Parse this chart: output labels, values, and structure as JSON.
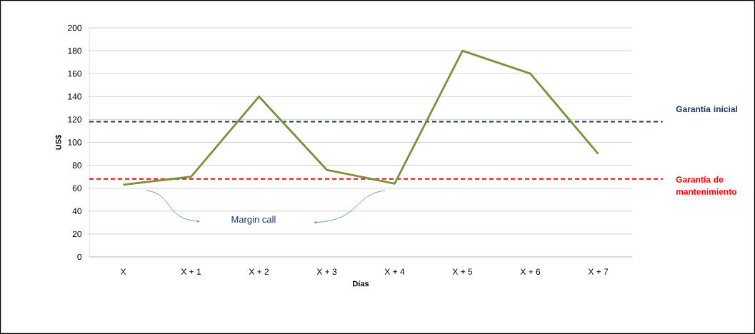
{
  "chart_data": {
    "type": "line",
    "xlabel": "Días",
    "ylabel": "US$",
    "categories": [
      "X",
      "X + 1",
      "X + 2",
      "X + 3",
      "X + 4",
      "X + 5",
      "X + 6",
      "X + 7"
    ],
    "series": [
      {
        "color": "#77933c",
        "values": [
          63,
          70,
          140,
          76,
          64,
          180,
          160,
          90
        ]
      }
    ],
    "ylim": [
      0,
      200
    ],
    "yticks": [
      0,
      20,
      40,
      60,
      80,
      100,
      120,
      140,
      160,
      180,
      200
    ],
    "grid": "y",
    "marker": "none",
    "line_style": "solid",
    "ref_lines": [
      {
        "axis": "y",
        "value": 118,
        "label": "Garantía inicial",
        "color": "#1f3864",
        "line_style": "dashed"
      },
      {
        "axis": "y",
        "value": 68,
        "label": "Garantía de mantenimiento",
        "color": "#ff0000",
        "line_style": "dashed"
      }
    ],
    "annotations": [
      "Margin call"
    ]
  }
}
